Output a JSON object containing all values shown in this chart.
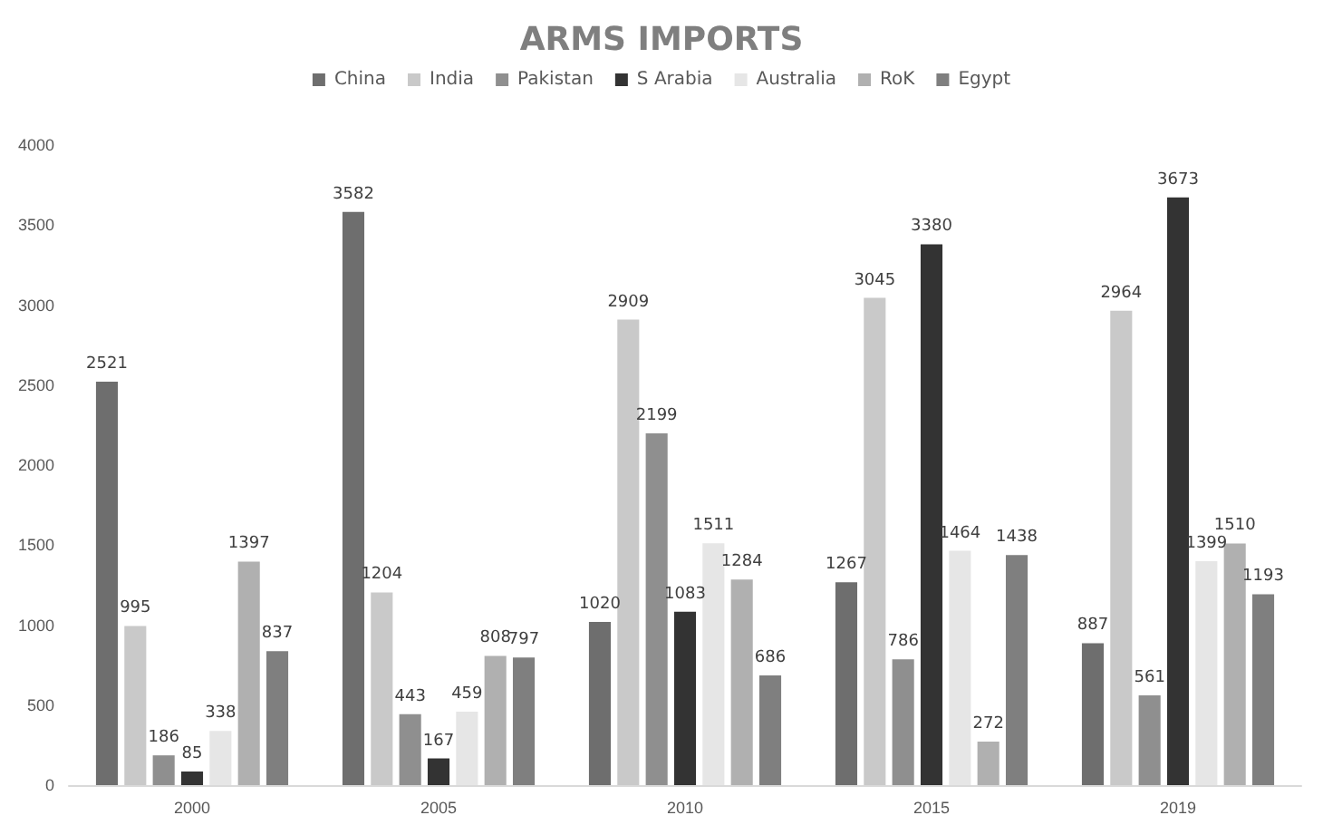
{
  "chart_data": {
    "type": "bar",
    "title": "ARMS IMPORTS",
    "categories": [
      "2000",
      "2005",
      "2010",
      "2015",
      "2019"
    ],
    "series": [
      {
        "name": "China",
        "color": "#6e6e6e",
        "values": [
          2521,
          3582,
          1020,
          1267,
          887
        ]
      },
      {
        "name": "India",
        "color": "#c9c9c9",
        "values": [
          995,
          1204,
          2909,
          3045,
          2964
        ]
      },
      {
        "name": "Pakistan",
        "color": "#8f8f8f",
        "values": [
          186,
          443,
          2199,
          786,
          561
        ]
      },
      {
        "name": "S Arabia",
        "color": "#333333",
        "values": [
          85,
          167,
          1083,
          3380,
          3673
        ]
      },
      {
        "name": "Australia",
        "color": "#e6e6e6",
        "values": [
          338,
          459,
          1511,
          1464,
          1399
        ]
      },
      {
        "name": "RoK",
        "color": "#b0b0b0",
        "values": [
          1397,
          808,
          1284,
          272,
          1510
        ]
      },
      {
        "name": "Egypt",
        "color": "#7f7f7f",
        "values": [
          837,
          797,
          686,
          1438,
          1193
        ]
      }
    ],
    "ylim": [
      0,
      4000
    ],
    "yticks": [
      0,
      500,
      1000,
      1500,
      2000,
      2500,
      3000,
      3500,
      4000
    ],
    "grid": false,
    "legend": "top",
    "data_labels": true
  }
}
